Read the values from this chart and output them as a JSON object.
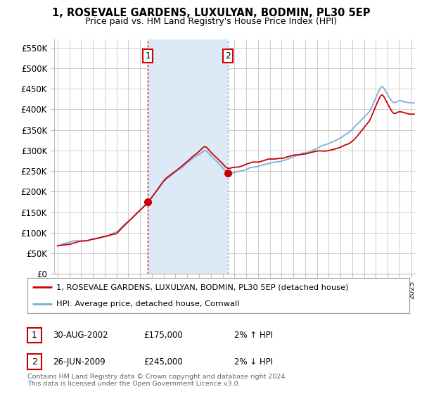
{
  "title": "1, ROSEVALE GARDENS, LUXULYAN, BODMIN, PL30 5EP",
  "subtitle": "Price paid vs. HM Land Registry's House Price Index (HPI)",
  "ylabel_ticks": [
    "£0",
    "£50K",
    "£100K",
    "£150K",
    "£200K",
    "£250K",
    "£300K",
    "£350K",
    "£400K",
    "£450K",
    "£500K",
    "£550K"
  ],
  "ytick_values": [
    0,
    50000,
    100000,
    150000,
    200000,
    250000,
    300000,
    350000,
    400000,
    450000,
    500000,
    550000
  ],
  "ylim": [
    0,
    570000
  ],
  "xlim_start": 1994.7,
  "xlim_end": 2025.3,
  "sale1_x": 2002.67,
  "sale1_price": 175000,
  "sale2_x": 2009.47,
  "sale2_price": 245000,
  "legend_house_label": "1, ROSEVALE GARDENS, LUXULYAN, BODMIN, PL30 5EP (detached house)",
  "legend_hpi_label": "HPI: Average price, detached house, Cornwall",
  "table_rows": [
    {
      "num": "1",
      "date": "30-AUG-2002",
      "price": "£175,000",
      "hpi": "2% ↑ HPI"
    },
    {
      "num": "2",
      "date": "26-JUN-2009",
      "price": "£245,000",
      "hpi": "2% ↓ HPI"
    }
  ],
  "footer": "Contains HM Land Registry data © Crown copyright and database right 2024.\nThis data is licensed under the Open Government Licence v3.0.",
  "line_color_house": "#cc0000",
  "line_color_hpi": "#7bafd4",
  "shade_color": "#dceaf7",
  "bg_color": "#ffffff",
  "grid_color": "#cccccc",
  "vline_color1": "#cc0000",
  "vline_color2": "#7bafd4"
}
